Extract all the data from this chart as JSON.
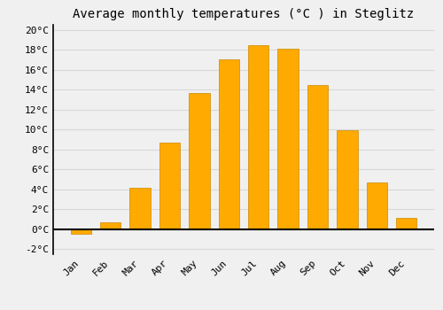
{
  "months": [
    "Jan",
    "Feb",
    "Mar",
    "Apr",
    "May",
    "Jun",
    "Jul",
    "Aug",
    "Sep",
    "Oct",
    "Nov",
    "Dec"
  ],
  "temperatures": [
    -0.5,
    0.7,
    4.2,
    8.7,
    13.7,
    17.0,
    18.5,
    18.1,
    14.5,
    9.9,
    4.7,
    1.1
  ],
  "bar_color": "#FFAA00",
  "bar_edge_color": "#CC8800",
  "title": "Average monthly temperatures (°C ) in Steglitz",
  "ylim": [
    -2.5,
    20.5
  ],
  "yticks": [
    -2,
    0,
    2,
    4,
    6,
    8,
    10,
    12,
    14,
    16,
    18,
    20
  ],
  "ytick_labels": [
    "-2°C",
    "0°C",
    "2°C",
    "4°C",
    "6°C",
    "8°C",
    "10°C",
    "12°C",
    "14°C",
    "16°C",
    "18°C",
    "20°C"
  ],
  "background_color": "#f0f0f0",
  "grid_color": "#d8d8d8",
  "title_fontsize": 10,
  "tick_fontsize": 8
}
